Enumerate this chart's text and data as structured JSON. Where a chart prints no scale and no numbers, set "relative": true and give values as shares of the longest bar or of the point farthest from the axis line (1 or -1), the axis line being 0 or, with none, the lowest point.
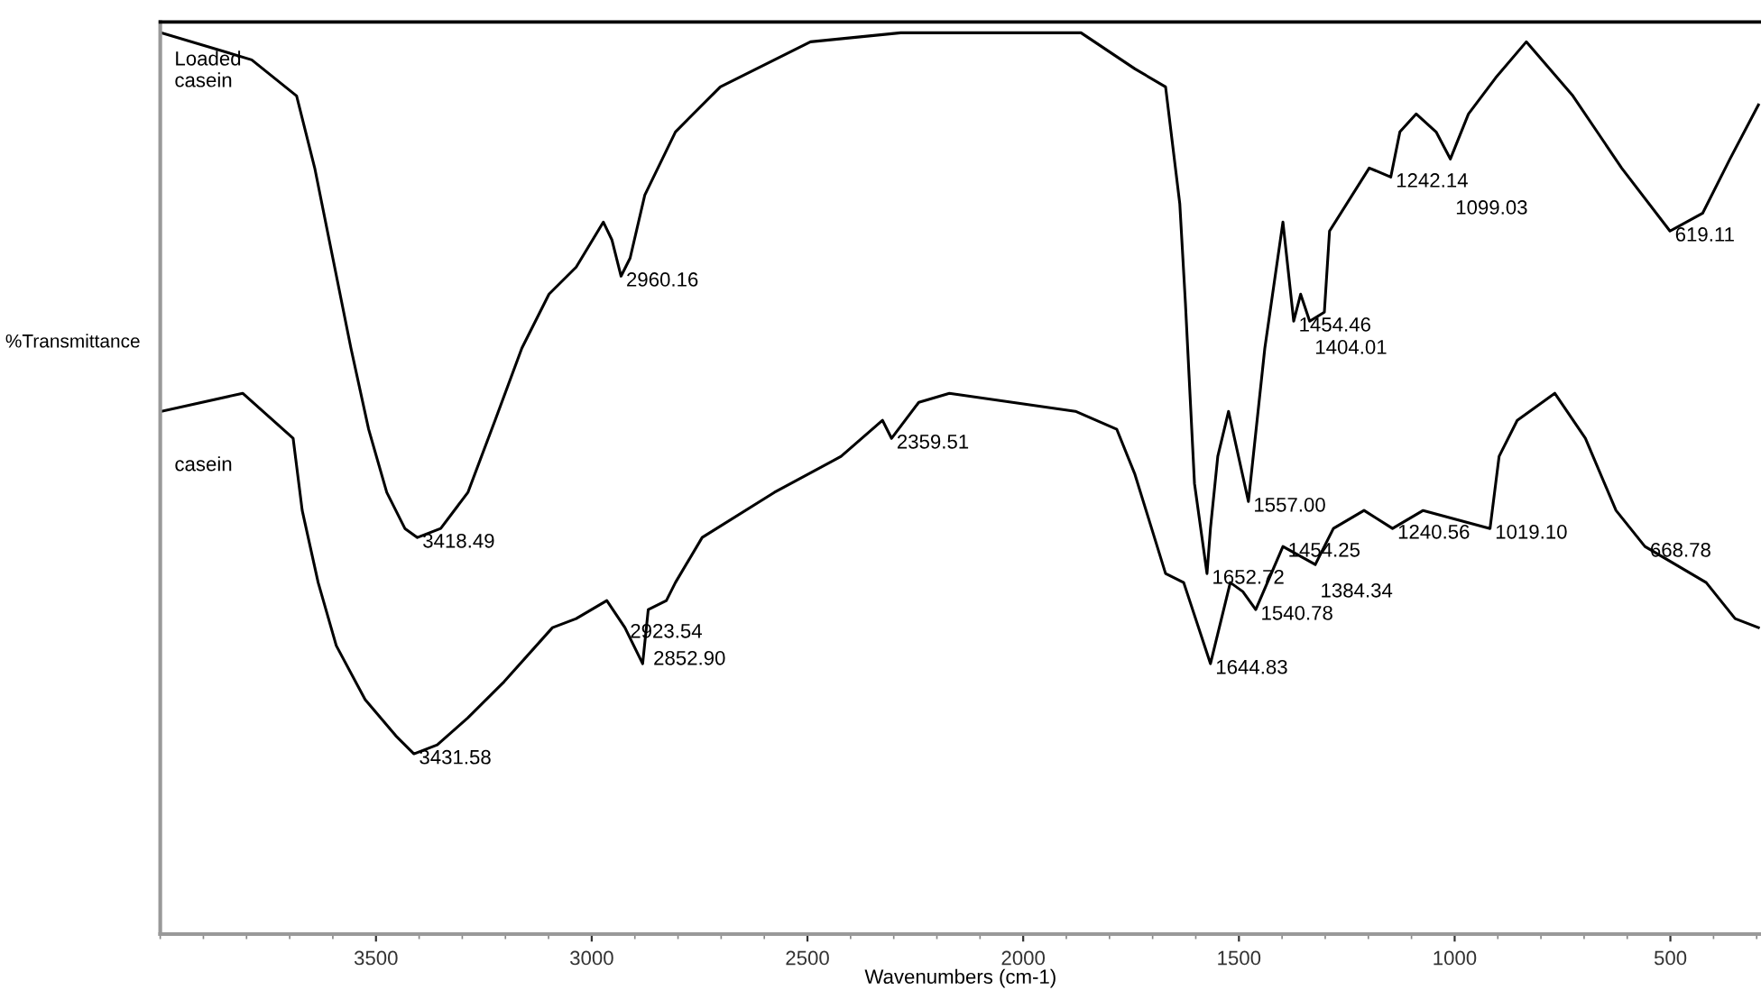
{
  "chart_data": {
    "type": "line",
    "relative": true,
    "xlabel": "Wavenumbers (cm-1)",
    "ylabel": "%Transmittance",
    "xlim": [
      4000,
      290
    ],
    "xticks": [
      3500,
      3000,
      2500,
      2000,
      1500,
      1000,
      500
    ],
    "grid": false,
    "legend": false,
    "marker": "none",
    "line_style": "solid",
    "tick_labels": "x",
    "series": [
      {
        "name": "Loaded\ncasein",
        "color": "#000000",
        "x": [
          3997,
          3788,
          3684,
          3642,
          3600,
          3558,
          3517,
          3475,
          3433,
          3404,
          3350,
          3287,
          3224,
          3162,
          3099,
          3036,
          2973,
          2953,
          2932,
          2911,
          2877,
          2806,
          2702,
          2493,
          2284,
          2034,
          1866,
          1741,
          1670,
          1637,
          1624,
          1603,
          1574,
          1566,
          1549,
          1524,
          1478,
          1440,
          1398,
          1373,
          1357,
          1336,
          1302,
          1290,
          1198,
          1148,
          1127,
          1089,
          1043,
          1010,
          968,
          905,
          834,
          726,
          613,
          501,
          425,
          362,
          296
        ],
        "values": [
          1.0,
          0.97,
          0.93,
          0.85,
          0.75,
          0.65,
          0.56,
          0.49,
          0.45,
          0.44,
          0.45,
          0.49,
          0.57,
          0.65,
          0.71,
          0.74,
          0.79,
          0.77,
          0.73,
          0.75,
          0.82,
          0.89,
          0.94,
          0.99,
          1.0,
          1.0,
          1.0,
          0.96,
          0.94,
          0.81,
          0.7,
          0.5,
          0.4,
          0.45,
          0.53,
          0.58,
          0.48,
          0.65,
          0.79,
          0.68,
          0.71,
          0.68,
          0.69,
          0.78,
          0.85,
          0.84,
          0.89,
          0.91,
          0.89,
          0.86,
          0.91,
          0.95,
          0.99,
          0.93,
          0.85,
          0.78,
          0.8,
          0.86,
          0.92
        ]
      },
      {
        "name": "casein",
        "color": "#000000",
        "x": [
          3997,
          3809,
          3692,
          3671,
          3634,
          3592,
          3525,
          3454,
          3412,
          3358,
          3287,
          3203,
          3091,
          3036,
          2965,
          2923,
          2882,
          2869,
          2827,
          2806,
          2744,
          2577,
          2422,
          2326,
          2305,
          2242,
          2171,
          1879,
          1783,
          1741,
          1670,
          1628,
          1566,
          1520,
          1491,
          1461,
          1398,
          1323,
          1281,
          1210,
          1144,
          1073,
          918,
          897,
          855,
          768,
          697,
          626,
          559,
          417,
          350,
          296
        ],
        "values": [
          0.58,
          0.6,
          0.55,
          0.47,
          0.39,
          0.32,
          0.26,
          0.22,
          0.2,
          0.21,
          0.24,
          0.28,
          0.34,
          0.35,
          0.37,
          0.34,
          0.3,
          0.36,
          0.37,
          0.39,
          0.44,
          0.49,
          0.53,
          0.57,
          0.55,
          0.59,
          0.6,
          0.58,
          0.56,
          0.51,
          0.4,
          0.39,
          0.3,
          0.39,
          0.38,
          0.36,
          0.43,
          0.41,
          0.45,
          0.47,
          0.45,
          0.47,
          0.45,
          0.53,
          0.57,
          0.6,
          0.55,
          0.47,
          0.43,
          0.39,
          0.35,
          0.34
        ]
      }
    ],
    "annotations": [
      {
        "text": "3418.49",
        "x": 3404,
        "y": 0.44
      },
      {
        "text": "2960.16",
        "x": 2932,
        "y": 0.73
      },
      {
        "text": "1652.72",
        "x": 1574,
        "y": 0.4
      },
      {
        "text": "1557.00",
        "x": 1478,
        "y": 0.48
      },
      {
        "text": "1454.46",
        "x": 1373,
        "y": 0.68
      },
      {
        "text": "1404.01",
        "x": 1336,
        "y": 0.68
      },
      {
        "text": "1242.14",
        "x": 1148,
        "y": 0.84
      },
      {
        "text": "1099.03",
        "x": 1010,
        "y": 0.86
      },
      {
        "text": "619.11",
        "x": 501,
        "y": 0.78
      },
      {
        "text": "3431.58",
        "x": 3412,
        "y": 0.2
      },
      {
        "text": "2923.54",
        "x": 2923,
        "y": 0.34
      },
      {
        "text": "2852.90",
        "x": 2869,
        "y": 0.36
      },
      {
        "text": "2359.51",
        "x": 2305,
        "y": 0.55
      },
      {
        "text": "1644.83",
        "x": 1566,
        "y": 0.3
      },
      {
        "text": "1540.78",
        "x": 1461,
        "y": 0.36
      },
      {
        "text": "1454.25",
        "x": 1398,
        "y": 0.43
      },
      {
        "text": "1384.34",
        "x": 1323,
        "y": 0.41
      },
      {
        "text": "1240.56",
        "x": 1144,
        "y": 0.45
      },
      {
        "text": "1019.10",
        "x": 918,
        "y": 0.45
      },
      {
        "text": "668.78",
        "x": 559,
        "y": 0.43
      }
    ]
  }
}
